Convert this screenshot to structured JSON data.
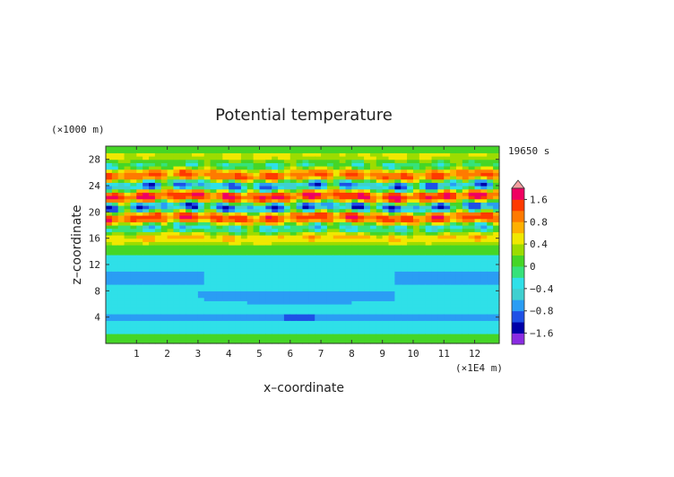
{
  "chart_data": {
    "type": "heatmap",
    "title": "Potential temperature",
    "xlabel": "x–coordinate",
    "ylabel": "z–coordinate",
    "x_unit": "(×1E4 m)",
    "y_unit": "(×1000 m)",
    "time_label": "19650 s",
    "xlim": [
      0,
      12.8
    ],
    "ylim": [
      0,
      30
    ],
    "x_ticks": [
      1,
      2,
      3,
      4,
      5,
      6,
      7,
      8,
      9,
      10,
      11,
      12
    ],
    "y_ticks": [
      4,
      8,
      12,
      16,
      20,
      24,
      28
    ],
    "colorbar": {
      "tick_labels": [
        "1.6",
        "0.8",
        "0.4",
        "0",
        "−0.4",
        "−0.8",
        "−1.6"
      ],
      "tick_values": [
        1.6,
        0.8,
        0.4,
        0,
        -0.4,
        -0.8,
        -1.6
      ],
      "levels": [
        -2.0,
        -1.6,
        -1.2,
        -0.8,
        -0.6,
        -0.4,
        -0.2,
        0,
        0.2,
        0.4,
        0.6,
        0.8,
        1.2,
        1.6,
        2.0
      ],
      "colors": [
        "#8a2be2",
        "#0000a8",
        "#1e50e6",
        "#2a9df4",
        "#3fd0d0",
        "#2fe0e8",
        "#36e27a",
        "#45d626",
        "#9cdc00",
        "#f0e800",
        "#ffb000",
        "#ff7a00",
        "#ff3a00",
        "#f00060"
      ],
      "extend_top_color": "#f4a0a0"
    },
    "bands": [
      {
        "z": [
          0,
          1.5
        ],
        "value": 0.1
      },
      {
        "z": [
          1.5,
          3.5
        ],
        "value": -0.35
      },
      {
        "z": [
          3.5,
          4.6
        ],
        "value": -0.7
      },
      {
        "z": [
          4.6,
          11.5
        ],
        "value": -0.35
      },
      {
        "z": [
          11.5,
          13.5
        ],
        "value": -0.25
      },
      {
        "z": [
          13.5,
          15.0
        ],
        "value": 0.05
      },
      {
        "z": [
          15.0,
          29.0
        ],
        "value": "oscillating, amplitude about 1.6"
      },
      {
        "z": [
          29.0,
          30.0
        ],
        "value": 0.1
      }
    ]
  }
}
